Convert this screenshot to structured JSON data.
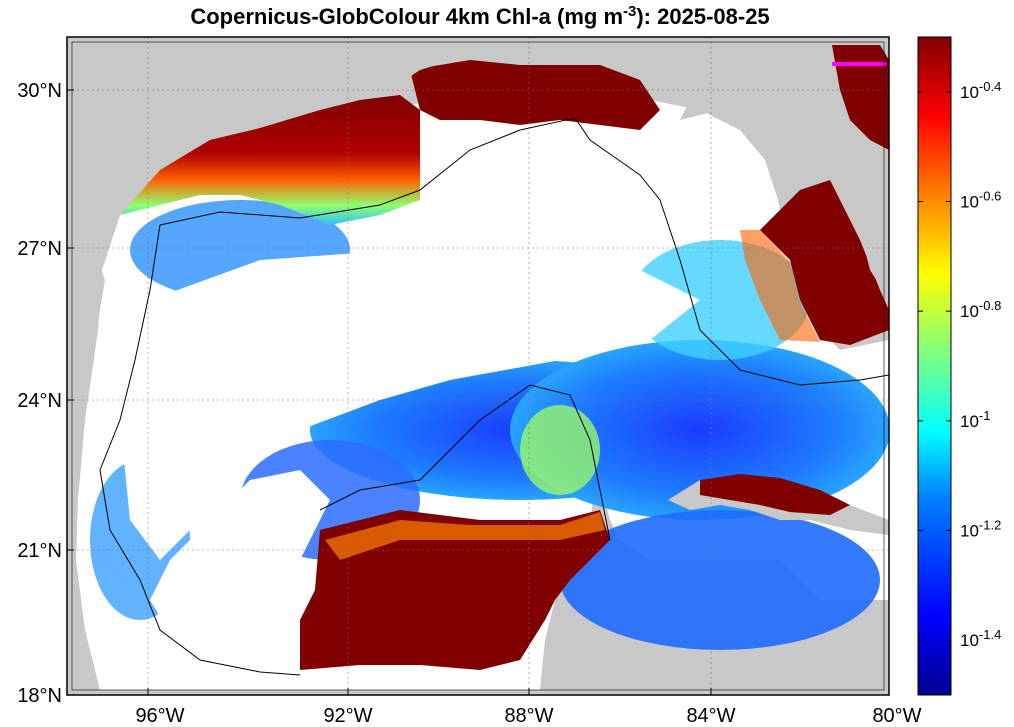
{
  "title": {
    "prefix": "Copernicus-GlobColour 4km Chl-a (mg m",
    "superscript": "-3",
    "suffix": "): 2025-08-25"
  },
  "map": {
    "region": "Gulf of Mexico",
    "lon_range": [
      -98,
      -80
    ],
    "lat_range": [
      18,
      31
    ],
    "x_ticks": [
      {
        "lon": -96,
        "label": "96°W"
      },
      {
        "lon": -92,
        "label": "92°W"
      },
      {
        "lon": -88,
        "label": "88°W"
      },
      {
        "lon": -84,
        "label": "84°W"
      },
      {
        "lon": -80,
        "label": "80°W"
      }
    ],
    "y_ticks": [
      {
        "lat": 18,
        "label": "18°N"
      },
      {
        "lat": 21,
        "label": "21°N"
      },
      {
        "lat": 24,
        "label": "24°N"
      },
      {
        "lat": 27,
        "label": "27°N"
      },
      {
        "lat": 30,
        "label": "30°N"
      }
    ],
    "grid": true,
    "colors": {
      "land": "#c8c8c8",
      "no_data": "#ffffff",
      "coastline": "#000000",
      "contour": "#000000",
      "marker": "#ff00ff"
    }
  },
  "colorbar": {
    "scale": "log10",
    "range": [
      -1.5,
      -0.3
    ],
    "colormap": "jet",
    "ticks": [
      {
        "exp": -0.4,
        "base": "10",
        "sup": "-0.4"
      },
      {
        "exp": -0.6,
        "base": "10",
        "sup": "-0.6"
      },
      {
        "exp": -0.8,
        "base": "10",
        "sup": "-0.8"
      },
      {
        "exp": -1.0,
        "base": "10",
        "sup": "-1"
      },
      {
        "exp": -1.2,
        "base": "10",
        "sup": "-1.2"
      },
      {
        "exp": -1.4,
        "base": "10",
        "sup": "-1.4"
      }
    ],
    "colors": [
      "#00008f",
      "#0000ff",
      "#0080ff",
      "#00ffff",
      "#80ff80",
      "#ffff00",
      "#ff8000",
      "#ff0000",
      "#800000"
    ]
  }
}
